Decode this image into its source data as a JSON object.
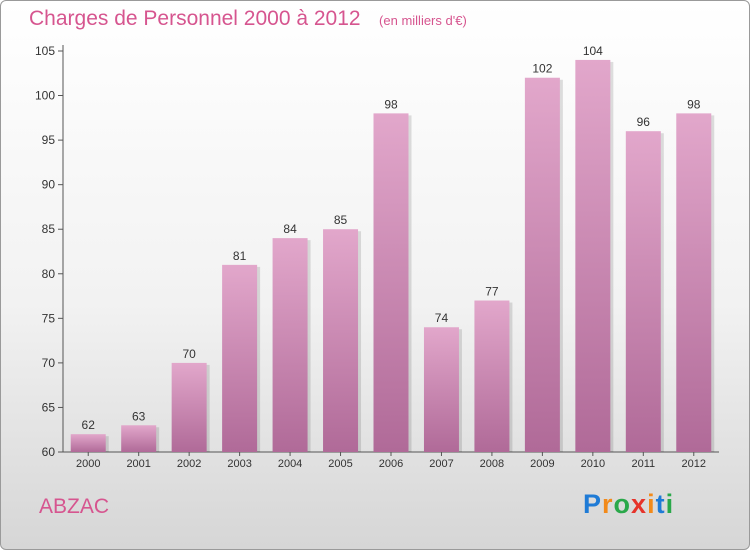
{
  "title": "Charges de Personnel 2000 à 2012",
  "subtitle": "(en milliers d'€)",
  "commune": "ABZAC",
  "logo": {
    "text": "Proxiti",
    "letter_colors": [
      "#1f7bd6",
      "#f28a1a",
      "#2aa84a",
      "#e6332a",
      "#f28a1a",
      "#1f7bd6",
      "#2aa84a"
    ]
  },
  "colors": {
    "accent": "#d6558f",
    "bar_top": "#e2a7cb",
    "bar_bottom": "#b06a98"
  },
  "chart_data": {
    "type": "bar",
    "categories": [
      "2000",
      "2001",
      "2002",
      "2003",
      "2004",
      "2005",
      "2006",
      "2007",
      "2008",
      "2009",
      "2010",
      "2011",
      "2012"
    ],
    "values": [
      62,
      63,
      70,
      81,
      84,
      85,
      98,
      74,
      77,
      102,
      104,
      96,
      98
    ],
    "ylim": [
      60,
      105
    ],
    "yticks": [
      60,
      65,
      70,
      75,
      80,
      85,
      90,
      95,
      100,
      105
    ],
    "grid": false,
    "data_labels": true
  }
}
